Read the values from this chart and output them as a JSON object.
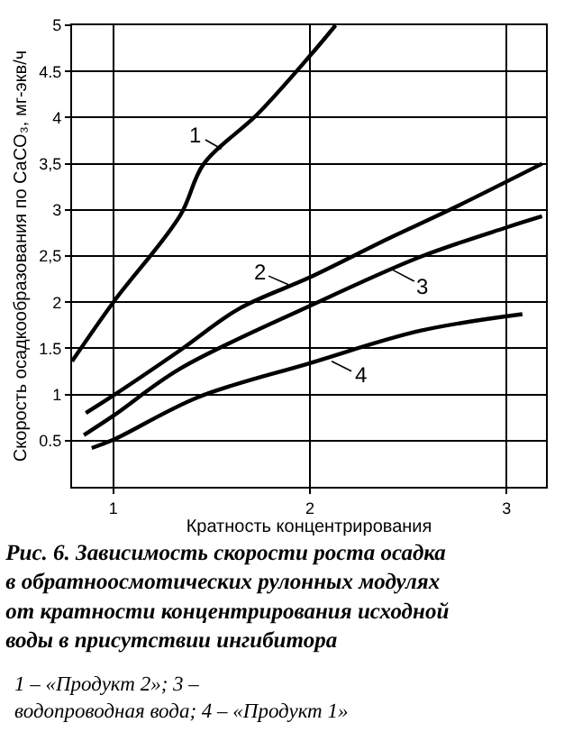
{
  "chart_data": {
    "type": "line",
    "title": "Рис. 6. Зависимость скорости роста осадка\nв обратноосмотических рулонных модулях\nот кратности концентрирования исходной\nводы в присутствии ингибитора",
    "xlabel": "Кратность концентрирования",
    "ylabel": "Скорость осадкообразования по CaCO₃, мг-экв/ч",
    "series": [
      {
        "color": "#000000",
        "x": [
          0.79,
          1.0,
          1.34,
          1.46,
          1.73,
          2.0,
          2.13
        ],
        "values": [
          1.36,
          2.0,
          2.94,
          3.5,
          4.03,
          4.67,
          5.0
        ]
      },
      {
        "color": "#000000",
        "x": [
          0.86,
          1.0,
          1.34,
          1.64,
          2.0,
          2.4,
          2.71,
          3.18
        ],
        "values": [
          0.8,
          0.99,
          1.48,
          1.93,
          2.27,
          2.69,
          3.0,
          3.5
        ]
      },
      {
        "color": "#000000",
        "x": [
          0.85,
          1.0,
          1.34,
          2.0,
          2.56,
          3.0,
          3.18
        ],
        "values": [
          0.56,
          0.77,
          1.28,
          1.96,
          2.49,
          2.81,
          2.93
        ]
      },
      {
        "color": "#000000",
        "x": [
          0.89,
          1.0,
          1.43,
          2.0,
          2.56,
          3.08
        ],
        "values": [
          0.42,
          0.51,
          0.97,
          1.34,
          1.69,
          1.87
        ]
      }
    ],
    "annotations": [
      {
        "text": "1",
        "x": 1.55,
        "y": 3.66
      },
      {
        "text": "2",
        "x": 1.89,
        "y": 2.19
      },
      {
        "text": "3",
        "x": 2.42,
        "y": 2.35
      },
      {
        "text": "4",
        "x": 2.11,
        "y": 1.36
      },
      "1 – «Продукт 2»; 3 –\nводопроводная вода; 4 – «Продукт 1»"
    ],
    "xlim": [
      0.79,
      3.2
    ],
    "xticks": [
      1,
      2,
      3
    ],
    "ylim": [
      0,
      5
    ],
    "yticks": [
      0.5,
      1,
      "1.5",
      2,
      {
        "value": 2.5,
        "label": "2,5"
      },
      3,
      {
        "value": 3.5,
        "label": "3,5"
      },
      4,
      4.5,
      5
    ],
    "grid": true,
    "marker": "none",
    "line_style": "solid"
  }
}
